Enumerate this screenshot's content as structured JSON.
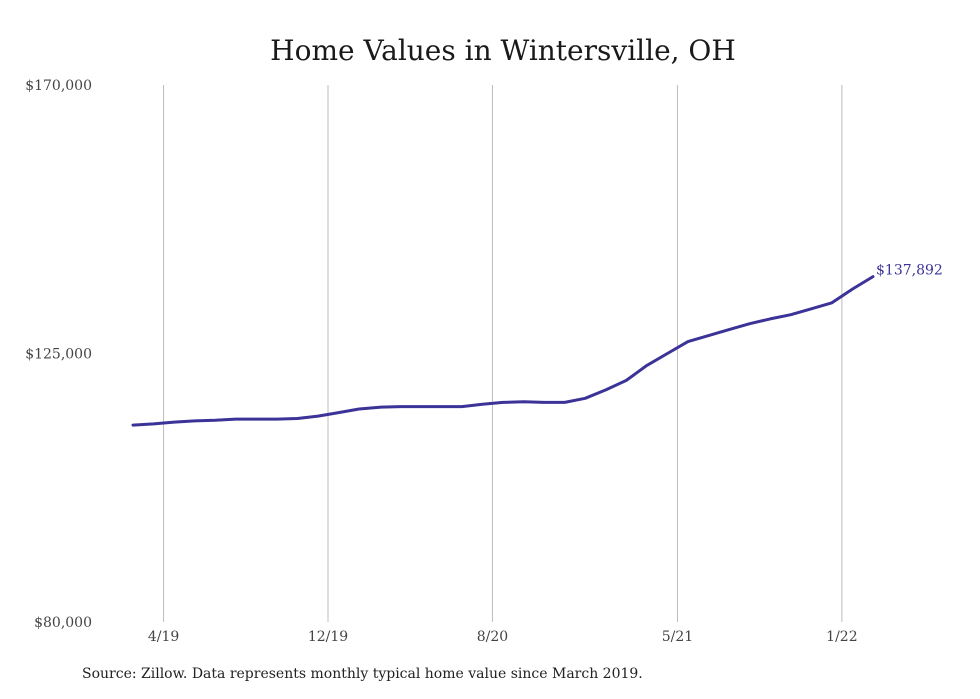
{
  "chart_data": {
    "type": "line",
    "title": "Home Values in Wintersville, OH",
    "xlabel": "",
    "ylabel": "",
    "ylim": [
      80000,
      170000
    ],
    "y_ticks": [
      80000,
      125000,
      170000
    ],
    "y_tick_labels": [
      "$80,000",
      "$125,000",
      "$170,000"
    ],
    "x_tick_labels": [
      "4/19",
      "12/19",
      "8/20",
      "5/21",
      "1/22"
    ],
    "x_tick_months": [
      1,
      9,
      17,
      26,
      34
    ],
    "grid": "vertical",
    "legend": "none",
    "line_color": "#3b3398",
    "end_label": "$137,892",
    "series": [
      {
        "x": [
          "3/19",
          "4/19",
          "5/19",
          "6/19",
          "7/19",
          "8/19",
          "9/19",
          "10/19",
          "11/19",
          "12/19",
          "1/20",
          "2/20",
          "3/20",
          "4/20",
          "5/20",
          "6/20",
          "7/20",
          "8/20",
          "9/20",
          "10/20",
          "11/20",
          "12/20",
          "1/21",
          "2/21",
          "3/21",
          "4/21",
          "5/21",
          "6/21",
          "7/21",
          "8/21",
          "9/21",
          "10/21",
          "11/21",
          "12/21",
          "1/22",
          "2/22",
          "3/22"
        ],
        "values": [
          113000,
          113200,
          113500,
          113700,
          113800,
          114000,
          114000,
          114000,
          114100,
          114500,
          115100,
          115700,
          116000,
          116100,
          116100,
          116100,
          116100,
          116500,
          116800,
          116900,
          116800,
          116800,
          117500,
          118900,
          120500,
          123000,
          125000,
          127000,
          128000,
          129000,
          130000,
          130800,
          131500,
          132500,
          133500,
          135800,
          137892
        ]
      }
    ]
  },
  "source_note": "Source: Zillow. Data represents monthly typical home value since March 2019."
}
